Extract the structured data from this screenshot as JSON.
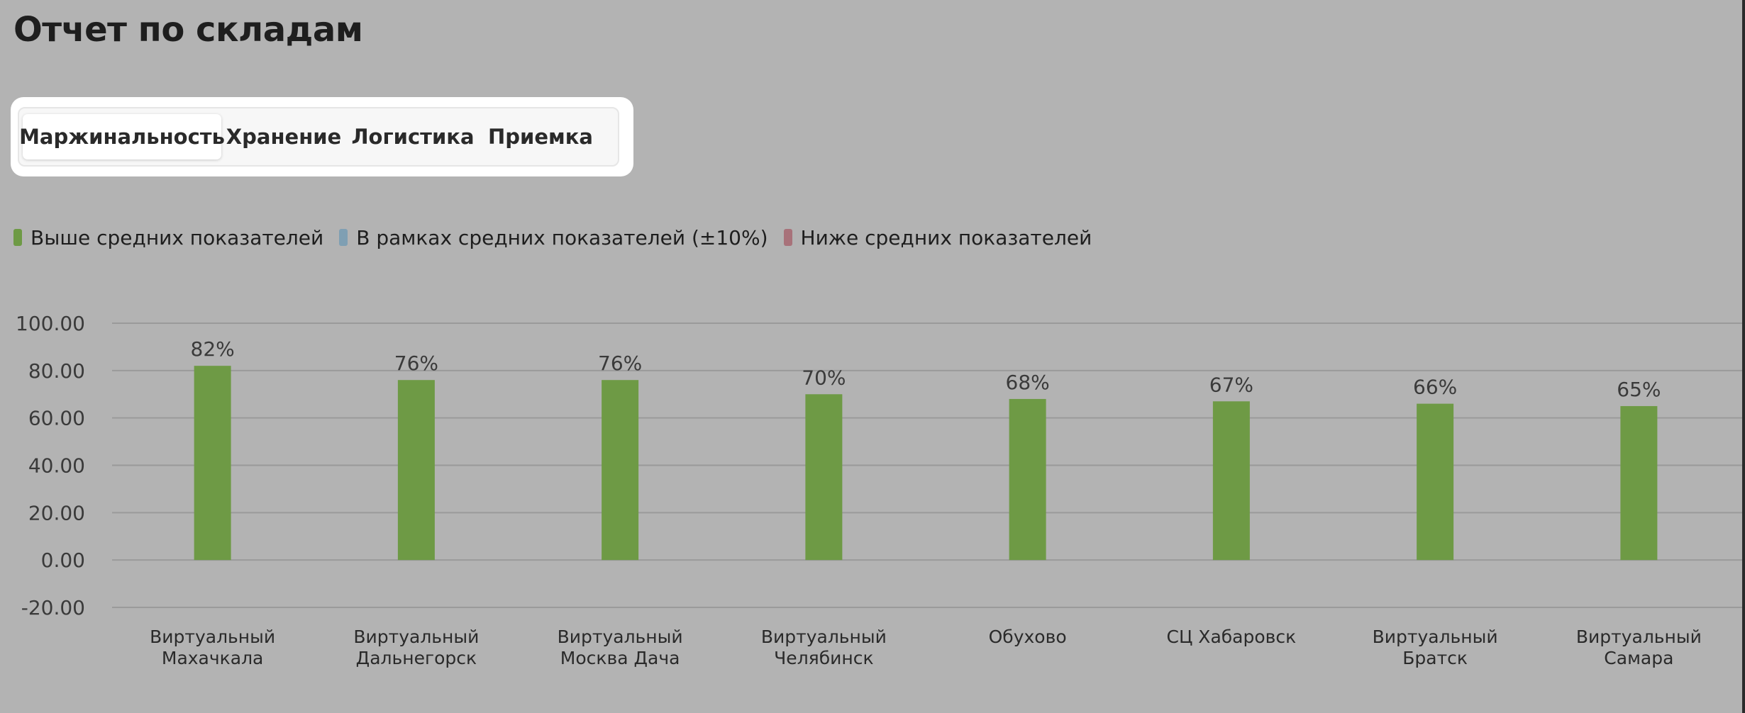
{
  "page": {
    "title": "Отчет по складам"
  },
  "tabs": [
    {
      "label": "Маржинальность",
      "active": true
    },
    {
      "label": "Хранение",
      "active": false
    },
    {
      "label": "Логистика",
      "active": false
    },
    {
      "label": "Приемка",
      "active": false
    }
  ],
  "legend": [
    {
      "label": "Выше средних показателей",
      "color": "#6e9a45"
    },
    {
      "label": "В рамках средних показателей (±10%)",
      "color": "#7f9fb3"
    },
    {
      "label": "Ниже средних показателей",
      "color": "#a8727a"
    }
  ],
  "chart_data": {
    "type": "bar",
    "categories": [
      [
        "Виртуальный",
        "Махачкала"
      ],
      [
        "Виртуальный",
        "Дальнегорск"
      ],
      [
        "Виртуальный",
        "Москва Дача"
      ],
      [
        "Виртуальный",
        "Челябинск"
      ],
      [
        "Обухово"
      ],
      [
        "СЦ Хабаровск"
      ],
      [
        "Виртуальный",
        "Братск"
      ],
      [
        "Виртуальный",
        "Самара"
      ]
    ],
    "values": [
      82,
      76,
      76,
      70,
      68,
      67,
      66,
      65
    ],
    "data_labels": [
      "82%",
      "76%",
      "76%",
      "70%",
      "68%",
      "67%",
      "66%",
      "65%"
    ],
    "ylim": [
      -20,
      100
    ],
    "yticks": [
      "100.00",
      "80.00",
      "60.00",
      "40.00",
      "20.00",
      "0.00",
      "-20.00"
    ],
    "ytick_values": [
      100,
      80,
      60,
      40,
      20,
      0,
      -20
    ],
    "bar_color": "#6e9a45",
    "grid": true,
    "legend_position": "top-left"
  }
}
